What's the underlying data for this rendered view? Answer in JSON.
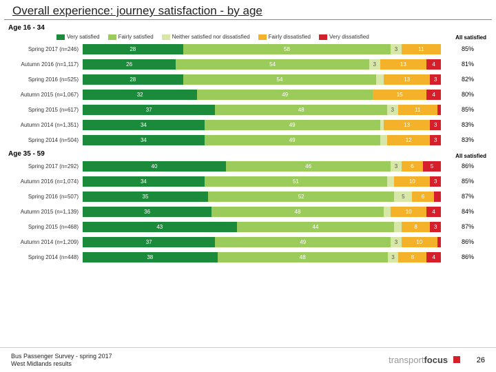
{
  "title": "Overall experience: journey satisfaction - by age",
  "colors": {
    "very_satisfied": "#1b8a3a",
    "fairly_satisfied": "#9bcb5b",
    "neither": "#d7e7a7",
    "fairly_dissatisfied": "#f3b229",
    "very_dissatisfied": "#d51f2b",
    "text_on_dark": "#ffffff",
    "text_on_light": "#555555"
  },
  "legend": {
    "items": [
      "Very satisfied",
      "Fairly satisfied",
      "Neither satisfied nor dissatisfied",
      "Fairly dissatisfied",
      "Very dissatisfied"
    ],
    "all_satisfied_label": "All satisfied"
  },
  "sections": [
    {
      "header": "Age 16 - 34",
      "rows": [
        {
          "label": "Spring 2017 (n=246)",
          "segs": [
            28,
            58,
            3,
            11,
            0
          ],
          "total": "85%"
        },
        {
          "label": "Autumn 2016 (n=1,117)",
          "segs": [
            26,
            54,
            3,
            13,
            4
          ],
          "total": "81%"
        },
        {
          "label": "Spring 2016 (n=525)",
          "segs": [
            28,
            54,
            2,
            13,
            3
          ],
          "total": "82%"
        },
        {
          "label": "Autumn 2015 (n=1,067)",
          "segs": [
            32,
            49,
            0,
            15,
            4
          ],
          "total": "80%"
        },
        {
          "label": "Spring 2015 (n=617)",
          "segs": [
            37,
            48,
            3,
            11,
            1
          ],
          "total": "85%"
        },
        {
          "label": "Autumn 2014 (n=1,351)",
          "segs": [
            34,
            49,
            1,
            13,
            3
          ],
          "total": "83%"
        },
        {
          "label": "Spring 2014 (n=504)",
          "segs": [
            34,
            49,
            2,
            12,
            3
          ],
          "total": "83%"
        }
      ]
    },
    {
      "header": "Age 35 - 59",
      "rows": [
        {
          "label": "Spring 2017 (n=292)",
          "segs": [
            40,
            46,
            3,
            6,
            5
          ],
          "total": "86%",
          "extra": 3
        },
        {
          "label": "Autumn 2016 (n=1,074)",
          "segs": [
            34,
            51,
            2,
            10,
            3
          ],
          "total": "85%"
        },
        {
          "label": "Spring 2016 (n=507)",
          "segs": [
            35,
            52,
            5,
            6,
            2
          ],
          "total": "87%"
        },
        {
          "label": "Autumn 2015 (n=1,139)",
          "segs": [
            36,
            48,
            2,
            10,
            4
          ],
          "total": "84%"
        },
        {
          "label": "Spring 2015 (n=468)",
          "segs": [
            43,
            44,
            2,
            8,
            3
          ],
          "total": "87%"
        },
        {
          "label": "Autumn 2014 (n=1,209)",
          "segs": [
            37,
            49,
            3,
            10,
            1
          ],
          "total": "86%"
        },
        {
          "label": "Spring 2014 (n=448)",
          "segs": [
            38,
            48,
            3,
            8,
            4
          ],
          "total": "86%"
        }
      ]
    }
  ],
  "footer": {
    "line1": "Bus Passenger Survey - spring 2017",
    "line2": "West Midlands results",
    "logo_part1": "transport",
    "logo_part2": "focus",
    "page": "26"
  }
}
